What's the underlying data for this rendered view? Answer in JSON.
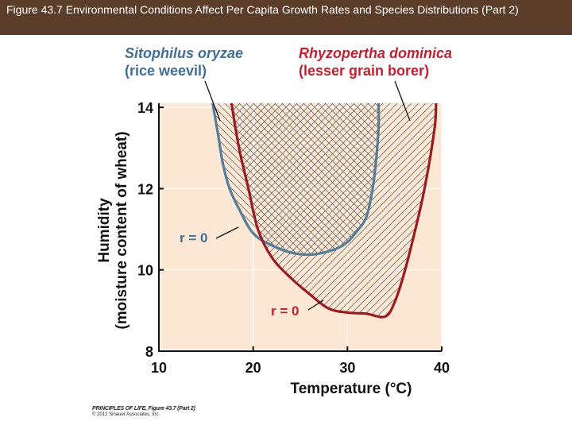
{
  "header": {
    "title": "Figure 43.7  Environmental Conditions Affect Per Capita Growth Rates and Species Distributions (Part 2)"
  },
  "credit": {
    "line1": "PRINCIPLES OF LIFE, Figure 43.7 (Part 2)",
    "line2": "© 2012 Sinauer Associates, Inc."
  },
  "chart_data": {
    "type": "line",
    "title": "",
    "xlabel": "Temperature (°C)",
    "ylabel_line1": "Humidity",
    "ylabel_line2": "(moisture content of wheat)",
    "xlim": [
      10,
      40
    ],
    "ylim": [
      8,
      14.1
    ],
    "x_ticks": [
      10,
      20,
      30,
      40
    ],
    "y_ticks": [
      8,
      10,
      12,
      14
    ],
    "series": [
      {
        "name": "Sitophilus oryzae",
        "common_name": "(rice weevil)",
        "color": "#557e99",
        "label_color": "#3f6f95",
        "curve_label": "r = 0",
        "points": [
          [
            15.7,
            14.1
          ],
          [
            16.3,
            13.3
          ],
          [
            16.8,
            12.6
          ],
          [
            17.5,
            12.0
          ],
          [
            18.5,
            11.5
          ],
          [
            20.0,
            10.9
          ],
          [
            22.0,
            10.6
          ],
          [
            24.5,
            10.4
          ],
          [
            27.0,
            10.4
          ],
          [
            29.5,
            10.6
          ],
          [
            31.0,
            10.95
          ],
          [
            32.0,
            11.3
          ],
          [
            32.6,
            11.9
          ],
          [
            33.0,
            12.6
          ],
          [
            33.3,
            13.5
          ],
          [
            33.3,
            14.1
          ]
        ]
      },
      {
        "name": "Rhyzopertha dominica",
        "common_name": "(lesser grain borer)",
        "color": "#9b1b22",
        "label_color": "#c22031",
        "curve_label": "r = 0",
        "points": [
          [
            17.7,
            14.1
          ],
          [
            18.5,
            13.0
          ],
          [
            19.5,
            12.0
          ],
          [
            20.5,
            11.0
          ],
          [
            22.0,
            10.3
          ],
          [
            24.0,
            9.8
          ],
          [
            26.0,
            9.4
          ],
          [
            28.0,
            9.05
          ],
          [
            30.0,
            8.95
          ],
          [
            32.0,
            8.92
          ],
          [
            34.0,
            8.85
          ],
          [
            35.0,
            9.2
          ],
          [
            36.0,
            9.9
          ],
          [
            37.0,
            10.8
          ],
          [
            38.0,
            11.8
          ],
          [
            38.8,
            12.8
          ],
          [
            39.3,
            13.6
          ],
          [
            39.4,
            14.1
          ]
        ]
      }
    ]
  }
}
